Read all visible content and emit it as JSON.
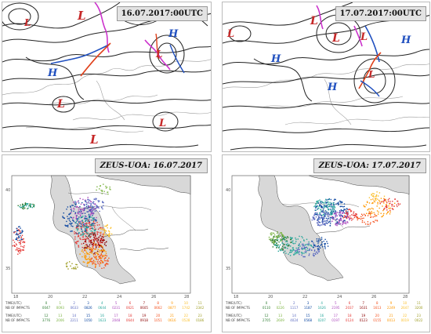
{
  "maps": {
    "left_label": "16.07.2017:00UTC",
    "right_label": "17.07.2017:00UTC",
    "left_systems": [
      "L",
      "L",
      "H",
      "H",
      "L",
      "L",
      "L",
      "L"
    ],
    "right_systems": [
      "L",
      "L",
      "L",
      "L",
      "H",
      "H",
      "H",
      "L"
    ]
  },
  "zeus": {
    "left_label": "ZEUS-UOA: 16.07.2017",
    "right_label": "ZEUS-UOA: 17.07.2017",
    "lat_ticks": [
      "40",
      "35"
    ],
    "lon_ticks": [
      "18",
      "20",
      "22",
      "24",
      "26",
      "28"
    ],
    "colors": [
      "#2e7d32",
      "#7cb342",
      "#5c6bc0",
      "#0d47a1",
      "#26a69a",
      "#ab47bc",
      "#e53935",
      "#8b0000",
      "#f4511e",
      "#ff9800",
      "#fbc02d",
      "#9e9d24"
    ],
    "legend_left": {
      "time_header": "TIME(UTC)",
      "nb_header": "NB OF IMPACTS",
      "row1_times": [
        "0",
        "1",
        "2",
        "3",
        "4",
        "5",
        "6",
        "7",
        "8",
        "9",
        "10",
        "11"
      ],
      "row1_counts": [
        "0047",
        "0093",
        "0633",
        "0826",
        "0644",
        "0231",
        "0621",
        "0605",
        "0662",
        "0877",
        "1742",
        "2342"
      ],
      "row2_times": [
        "12",
        "13",
        "14",
        "15",
        "16",
        "17",
        "18",
        "19",
        "20",
        "21",
        "22",
        "23"
      ],
      "row2_counts": [
        "3776",
        "2006",
        "2211",
        "1050",
        "1623",
        "2048",
        "0644",
        "0918",
        "1051",
        "0616",
        "0528",
        "0186"
      ]
    },
    "legend_right": {
      "time_header": "TIME(UTC)",
      "nb_header": "NB OF IMPACTS",
      "row1_times": [
        "0",
        "1",
        "2",
        "3",
        "4",
        "5",
        "6",
        "7",
        "8",
        "9",
        "10",
        "11"
      ],
      "row1_counts": [
        "0110",
        "0226",
        "1117",
        "1187",
        "1626",
        "2195",
        "2037",
        "1631",
        "1613",
        "2249",
        "2647",
        "3200"
      ],
      "row2_times": [
        "12",
        "13",
        "14",
        "15",
        "16",
        "17",
        "18",
        "19",
        "20",
        "21",
        "22",
        "23"
      ],
      "row2_counts": [
        "2705",
        "2609",
        "4024",
        "0568",
        "0207",
        "0197",
        "0124",
        "0123",
        "0155",
        "0013",
        "0019",
        "0022"
      ]
    }
  }
}
